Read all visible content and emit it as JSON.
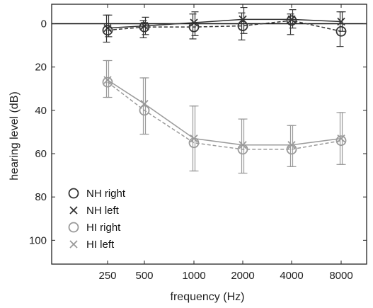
{
  "chart_data": {
    "type": "line",
    "xlabel": "frequency (Hz)",
    "ylabel": "hearing level (dB)",
    "x_ticks": [
      "250",
      "500",
      "1000",
      "2000",
      "4000",
      "8000"
    ],
    "y_ticks": [
      0,
      20,
      40,
      60,
      80,
      100
    ],
    "ylim": [
      -9,
      111
    ],
    "y_inverted": true,
    "reference_line_y": 0,
    "legend_position": "bottom-left",
    "series": [
      {
        "name": "NH right",
        "marker": "circle",
        "line_style": "dashed",
        "color": "#333333",
        "values": [
          3,
          1.5,
          1.5,
          1,
          -1.5,
          3.5
        ],
        "error_low": [
          8.5,
          6.5,
          7,
          7.5,
          5,
          10.5
        ],
        "error_high": [
          -4,
          -1.5,
          -4.5,
          -5,
          -4.5,
          -5.5
        ]
      },
      {
        "name": "NH left",
        "marker": "x",
        "line_style": "solid",
        "color": "#333333",
        "values": [
          2,
          1,
          -0.5,
          -2,
          -2,
          -1
        ],
        "error_low": [
          6,
          5,
          5.5,
          4.5,
          2,
          3.5
        ],
        "error_high": [
          -4,
          -3,
          -5.5,
          -7.5,
          -6.5,
          -5.5
        ]
      },
      {
        "name": "HI right",
        "marker": "circle",
        "line_style": "dashed",
        "color": "#9a9a9a",
        "values": [
          27,
          40,
          55,
          58,
          58,
          54
        ],
        "error_low": [
          34,
          51,
          68,
          69,
          66,
          65
        ],
        "error_high": [
          17,
          25,
          38,
          44,
          47,
          41
        ]
      },
      {
        "name": "HI left",
        "marker": "x",
        "line_style": "solid",
        "color": "#9a9a9a",
        "values": [
          26,
          37,
          53,
          56,
          56,
          53
        ],
        "error_low": [
          34,
          51,
          68,
          69,
          66,
          65
        ],
        "error_high": [
          17,
          25,
          38,
          44,
          47,
          41
        ]
      }
    ]
  }
}
